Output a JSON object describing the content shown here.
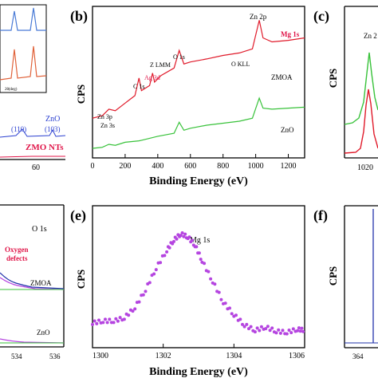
{
  "colors": {
    "axis": "#000000",
    "zmoa": "#e01a2a",
    "zno": "#38c23a",
    "mg": "#b545e0",
    "blue_text": "#2a3fd0",
    "red_text": "#e0174a",
    "fit_blue": "#2233aa",
    "panel_a_blue": "#4a7bd6",
    "panel_a_orange": "#e0623a"
  },
  "panels": {
    "a": {
      "inset_xlabel": "2θ(deg)",
      "zno_label": "ZnO",
      "peak_110": "(110)",
      "peak_103": "(103)",
      "zmo_label": "ZMO NTs",
      "tick_60": "60"
    },
    "b": {
      "letter": "(b)",
      "ylabel": "CPS",
      "xlabel": "Binding Energy (eV)",
      "xticks": [
        "0",
        "200",
        "400",
        "600",
        "800",
        "1000",
        "1200"
      ],
      "annotations": {
        "zn2p": "Zn 2p",
        "mg1s": "Mg 1s",
        "o1s": "O 1s",
        "zlmm": "Z LMM",
        "okll": "O KLL",
        "c1s": "C 1s",
        "ag3d": "Ag 3d",
        "zn3p": "Zn 3p",
        "zn3s": "Zn 3s",
        "zmoa": "ZMOA",
        "zno": "ZnO"
      }
    },
    "c": {
      "letter": "(c)",
      "ylabel": "CPS",
      "peak_label": "Zn 2",
      "xtick": "1020"
    },
    "d": {
      "title": "O 1s",
      "oxygen": "Oxygen",
      "defects": "defects",
      "zmoa": "ZMOA",
      "zno": "ZnO",
      "xticks": [
        "534",
        "536"
      ]
    },
    "e": {
      "letter": "(e)",
      "ylabel": "CPS",
      "title": "Mg 1s",
      "xlabel": "Binding Energy (eV)",
      "xticks": [
        "1300",
        "1302",
        "1304",
        "1306"
      ]
    },
    "f": {
      "letter": "(f)",
      "ylabel": "CPS",
      "xtick": "364"
    }
  },
  "chart_data": [
    {
      "panel": "b",
      "type": "line",
      "xlabel": "Binding Energy (eV)",
      "ylabel": "CPS",
      "xlim": [
        0,
        1300
      ],
      "series": [
        {
          "name": "ZMOA",
          "x": [
            0,
            60,
            100,
            140,
            200,
            260,
            285,
            300,
            350,
            368,
            380,
            420,
            500,
            531,
            560,
            600,
            700,
            800,
            900,
            980,
            1022,
            1045,
            1100,
            1200,
            1300
          ],
          "y": [
            60,
            65,
            78,
            75,
            90,
            105,
            140,
            115,
            125,
            150,
            132,
            145,
            160,
            195,
            168,
            172,
            178,
            185,
            190,
            198,
            255,
            220,
            212,
            215,
            220
          ]
        },
        {
          "name": "ZnO",
          "x": [
            0,
            60,
            100,
            140,
            200,
            285,
            300,
            400,
            500,
            531,
            560,
            600,
            700,
            800,
            900,
            980,
            1022,
            1045,
            1100,
            1200,
            1300
          ],
          "y": [
            0,
            2,
            8,
            6,
            12,
            15,
            16,
            24,
            30,
            52,
            36,
            40,
            46,
            50,
            54,
            60,
            100,
            80,
            78,
            80,
            82
          ]
        }
      ]
    },
    {
      "panel": "e",
      "type": "scatter",
      "title": "Mg 1s",
      "xlabel": "Binding Energy (eV)",
      "ylabel": "CPS",
      "xlim": [
        1300,
        1306
      ],
      "series": [
        {
          "name": "Mg 1s",
          "x": [
            1300.0,
            1300.3,
            1300.6,
            1300.9,
            1301.2,
            1301.5,
            1301.8,
            1302.1,
            1302.3,
            1302.5,
            1302.7,
            1302.9,
            1303.1,
            1303.4,
            1303.7,
            1304.0,
            1304.3,
            1304.6,
            1304.9,
            1305.2,
            1305.5,
            1305.8,
            1306.0
          ],
          "y": [
            10,
            12,
            12,
            15,
            25,
            42,
            63,
            80,
            90,
            96,
            93,
            85,
            70,
            50,
            30,
            18,
            8,
            3,
            6,
            2,
            1,
            4,
            3
          ]
        }
      ]
    }
  ]
}
